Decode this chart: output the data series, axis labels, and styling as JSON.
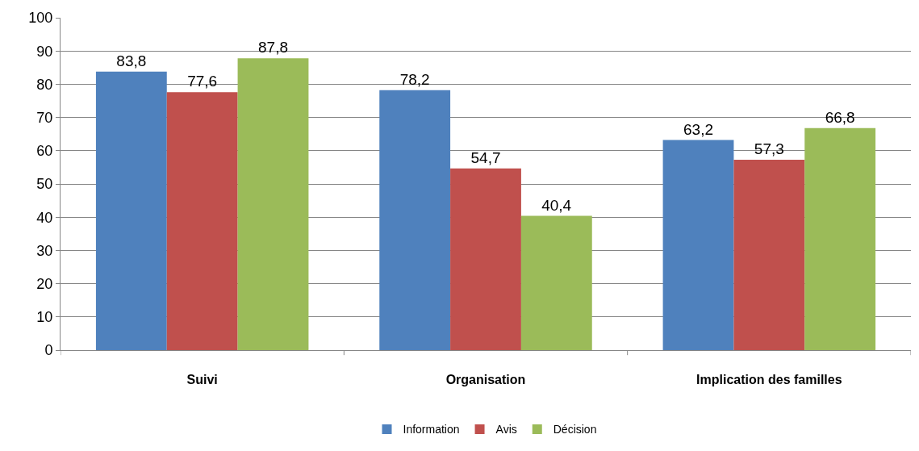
{
  "chart_data": {
    "type": "bar",
    "categories": [
      "Suivi",
      "Organisation",
      "Implication des familles"
    ],
    "series": [
      {
        "name": "Information",
        "color": "#4f81bd",
        "values": [
          83.8,
          78.2,
          63.2
        ],
        "value_labels": [
          "83,8",
          "78,2",
          "63,2"
        ]
      },
      {
        "name": "Avis",
        "color": "#c0504d",
        "values": [
          77.6,
          54.7,
          57.3
        ],
        "value_labels": [
          "77,6",
          "54,7",
          "57,3"
        ]
      },
      {
        "name": "Décision",
        "color": "#9bbb59",
        "values": [
          87.8,
          40.4,
          66.8
        ],
        "value_labels": [
          "87,8",
          "40,4",
          "66,8"
        ]
      }
    ],
    "ylim": [
      0,
      100
    ],
    "yticks": [
      0,
      10,
      20,
      30,
      40,
      50,
      60,
      70,
      80,
      90,
      100
    ],
    "grid": "y",
    "legend": "bottom"
  }
}
